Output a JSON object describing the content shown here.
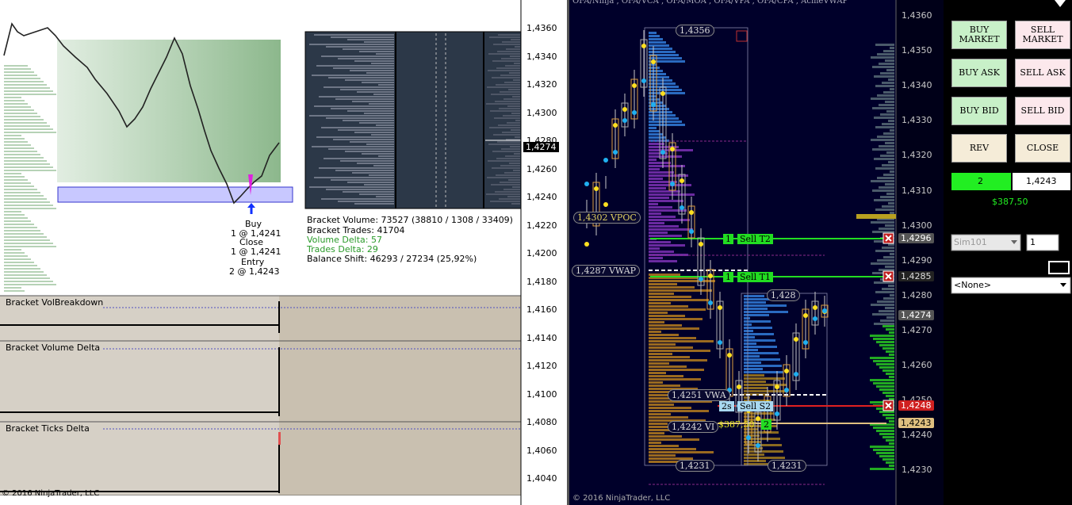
{
  "left_chart": {
    "price_axis": [
      "1,4360",
      "1,4340",
      "1,4320",
      "1,4300",
      "1,4280",
      "1,4260",
      "1,4240",
      "1,4220",
      "1,4200",
      "1,4180",
      "1,4160",
      "1,4140",
      "1,4120",
      "1,4100",
      "1,4080",
      "1,4060",
      "1,4040"
    ],
    "current_price": "1,4274",
    "trade_markers": [
      "Buy",
      "1 @ 1,4241",
      "Close",
      "1 @ 1,4241",
      "Entry",
      "2 @ 1,4243"
    ],
    "bracket_stats": {
      "volume": "Bracket Volume: 73527 (38810 / 1308 / 33409)",
      "trades": "Bracket Trades: 41704",
      "volume_delta": "Volume Delta: 57",
      "trades_delta": "Trades Delta: 29",
      "balance_shift": "Balance Shift: 46293 / 27234 (25,92%)"
    },
    "panels": [
      "Bracket VolBreakdown",
      "Bracket Volume Delta",
      "Bracket Ticks Delta"
    ],
    "copyright": "© 2016 NinjaTrader, LLC"
  },
  "right_chart": {
    "indicators": "OFA/Ninja , OFA/VCA , OFA/MOA , OFA/VPA , OFA/CPA , AcmeVWAP",
    "price_axis": [
      "1,4360",
      "1,4350",
      "1,4340",
      "1,4330",
      "1,4320",
      "1,4310",
      "1,4300",
      "1,4290",
      "1,4280",
      "1,4270",
      "1,4260",
      "1,4250",
      "1,4240",
      "1,4230"
    ],
    "axis_flags": [
      "1,4296",
      "1,4285",
      "1,4274",
      "1,4248",
      "1,4243"
    ],
    "labels": {
      "high": "1,4356",
      "vpoc": "1,4302 VPOC",
      "vwap": "1,4287 VWAP",
      "high2": "1,428",
      "vwap2": "1,4251 VWA",
      "vi": "1,4242 VI",
      "low": "1,4231",
      "low2": "1,4231"
    },
    "orders": {
      "t2_qty": "1",
      "t2": "Sell T2",
      "t1_qty": "1",
      "t1": "Sell T1",
      "s2_qty": "2s",
      "s2": "Sell S2",
      "pnl": "$387,50",
      "pos_qty": "2"
    },
    "copyright": "© 2016 NinjaTrader, LLC"
  },
  "order_panel": {
    "buttons": [
      "BUY MARKET",
      "SELL MARKET",
      "BUY ASK",
      "SELL ASK",
      "BUY BID",
      "SELL BID",
      "REV",
      "CLOSE"
    ],
    "position_qty": "2",
    "avg_price": "1,4243",
    "pnl": "$387,50",
    "account": "Sim101",
    "quantity": "1",
    "atm": "<None>"
  }
}
